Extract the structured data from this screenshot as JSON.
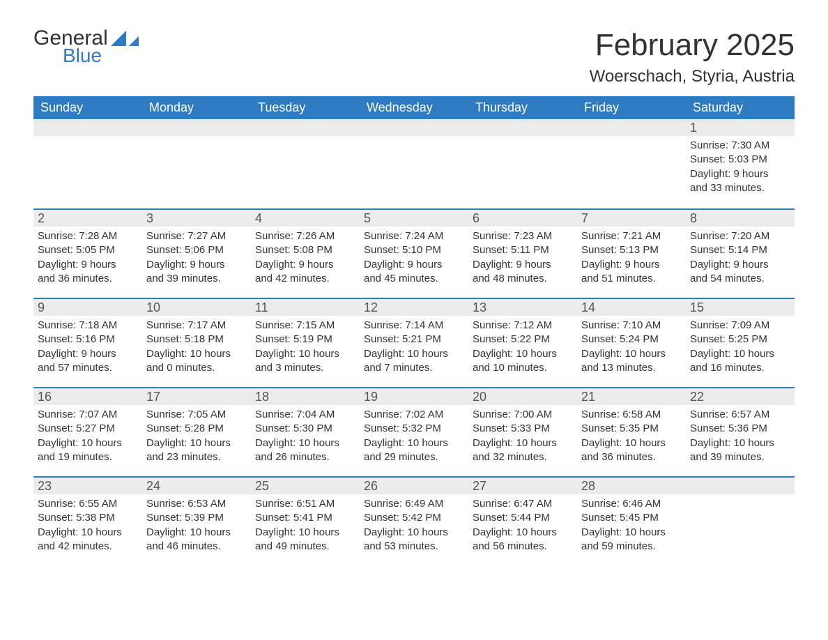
{
  "logo": {
    "text1": "General",
    "text2": "Blue"
  },
  "title": "February 2025",
  "location": "Woerschach, Styria, Austria",
  "colors": {
    "header_bg": "#2f7bc1",
    "header_text": "#ffffff",
    "rule": "#2f7bc1",
    "daynum_bg": "#ececec",
    "body_text": "#333333"
  },
  "typography": {
    "title_fontsize": 44,
    "location_fontsize": 24,
    "dow_fontsize": 18,
    "daynum_fontsize": 18,
    "body_fontsize": 15
  },
  "days_of_week": [
    "Sunday",
    "Monday",
    "Tuesday",
    "Wednesday",
    "Thursday",
    "Friday",
    "Saturday"
  ],
  "labels": {
    "sunrise": "Sunrise:",
    "sunset": "Sunset:",
    "daylight": "Daylight:"
  },
  "weeks": [
    [
      null,
      null,
      null,
      null,
      null,
      null,
      {
        "n": "1",
        "sunrise": "7:30 AM",
        "sunset": "5:03 PM",
        "daylight1": "9 hours",
        "daylight2": "and 33 minutes."
      }
    ],
    [
      {
        "n": "2",
        "sunrise": "7:28 AM",
        "sunset": "5:05 PM",
        "daylight1": "9 hours",
        "daylight2": "and 36 minutes."
      },
      {
        "n": "3",
        "sunrise": "7:27 AM",
        "sunset": "5:06 PM",
        "daylight1": "9 hours",
        "daylight2": "and 39 minutes."
      },
      {
        "n": "4",
        "sunrise": "7:26 AM",
        "sunset": "5:08 PM",
        "daylight1": "9 hours",
        "daylight2": "and 42 minutes."
      },
      {
        "n": "5",
        "sunrise": "7:24 AM",
        "sunset": "5:10 PM",
        "daylight1": "9 hours",
        "daylight2": "and 45 minutes."
      },
      {
        "n": "6",
        "sunrise": "7:23 AM",
        "sunset": "5:11 PM",
        "daylight1": "9 hours",
        "daylight2": "and 48 minutes."
      },
      {
        "n": "7",
        "sunrise": "7:21 AM",
        "sunset": "5:13 PM",
        "daylight1": "9 hours",
        "daylight2": "and 51 minutes."
      },
      {
        "n": "8",
        "sunrise": "7:20 AM",
        "sunset": "5:14 PM",
        "daylight1": "9 hours",
        "daylight2": "and 54 minutes."
      }
    ],
    [
      {
        "n": "9",
        "sunrise": "7:18 AM",
        "sunset": "5:16 PM",
        "daylight1": "9 hours",
        "daylight2": "and 57 minutes."
      },
      {
        "n": "10",
        "sunrise": "7:17 AM",
        "sunset": "5:18 PM",
        "daylight1": "10 hours",
        "daylight2": "and 0 minutes."
      },
      {
        "n": "11",
        "sunrise": "7:15 AM",
        "sunset": "5:19 PM",
        "daylight1": "10 hours",
        "daylight2": "and 3 minutes."
      },
      {
        "n": "12",
        "sunrise": "7:14 AM",
        "sunset": "5:21 PM",
        "daylight1": "10 hours",
        "daylight2": "and 7 minutes."
      },
      {
        "n": "13",
        "sunrise": "7:12 AM",
        "sunset": "5:22 PM",
        "daylight1": "10 hours",
        "daylight2": "and 10 minutes."
      },
      {
        "n": "14",
        "sunrise": "7:10 AM",
        "sunset": "5:24 PM",
        "daylight1": "10 hours",
        "daylight2": "and 13 minutes."
      },
      {
        "n": "15",
        "sunrise": "7:09 AM",
        "sunset": "5:25 PM",
        "daylight1": "10 hours",
        "daylight2": "and 16 minutes."
      }
    ],
    [
      {
        "n": "16",
        "sunrise": "7:07 AM",
        "sunset": "5:27 PM",
        "daylight1": "10 hours",
        "daylight2": "and 19 minutes."
      },
      {
        "n": "17",
        "sunrise": "7:05 AM",
        "sunset": "5:28 PM",
        "daylight1": "10 hours",
        "daylight2": "and 23 minutes."
      },
      {
        "n": "18",
        "sunrise": "7:04 AM",
        "sunset": "5:30 PM",
        "daylight1": "10 hours",
        "daylight2": "and 26 minutes."
      },
      {
        "n": "19",
        "sunrise": "7:02 AM",
        "sunset": "5:32 PM",
        "daylight1": "10 hours",
        "daylight2": "and 29 minutes."
      },
      {
        "n": "20",
        "sunrise": "7:00 AM",
        "sunset": "5:33 PM",
        "daylight1": "10 hours",
        "daylight2": "and 32 minutes."
      },
      {
        "n": "21",
        "sunrise": "6:58 AM",
        "sunset": "5:35 PM",
        "daylight1": "10 hours",
        "daylight2": "and 36 minutes."
      },
      {
        "n": "22",
        "sunrise": "6:57 AM",
        "sunset": "5:36 PM",
        "daylight1": "10 hours",
        "daylight2": "and 39 minutes."
      }
    ],
    [
      {
        "n": "23",
        "sunrise": "6:55 AM",
        "sunset": "5:38 PM",
        "daylight1": "10 hours",
        "daylight2": "and 42 minutes."
      },
      {
        "n": "24",
        "sunrise": "6:53 AM",
        "sunset": "5:39 PM",
        "daylight1": "10 hours",
        "daylight2": "and 46 minutes."
      },
      {
        "n": "25",
        "sunrise": "6:51 AM",
        "sunset": "5:41 PM",
        "daylight1": "10 hours",
        "daylight2": "and 49 minutes."
      },
      {
        "n": "26",
        "sunrise": "6:49 AM",
        "sunset": "5:42 PM",
        "daylight1": "10 hours",
        "daylight2": "and 53 minutes."
      },
      {
        "n": "27",
        "sunrise": "6:47 AM",
        "sunset": "5:44 PM",
        "daylight1": "10 hours",
        "daylight2": "and 56 minutes."
      },
      {
        "n": "28",
        "sunrise": "6:46 AM",
        "sunset": "5:45 PM",
        "daylight1": "10 hours",
        "daylight2": "and 59 minutes."
      },
      null
    ]
  ]
}
